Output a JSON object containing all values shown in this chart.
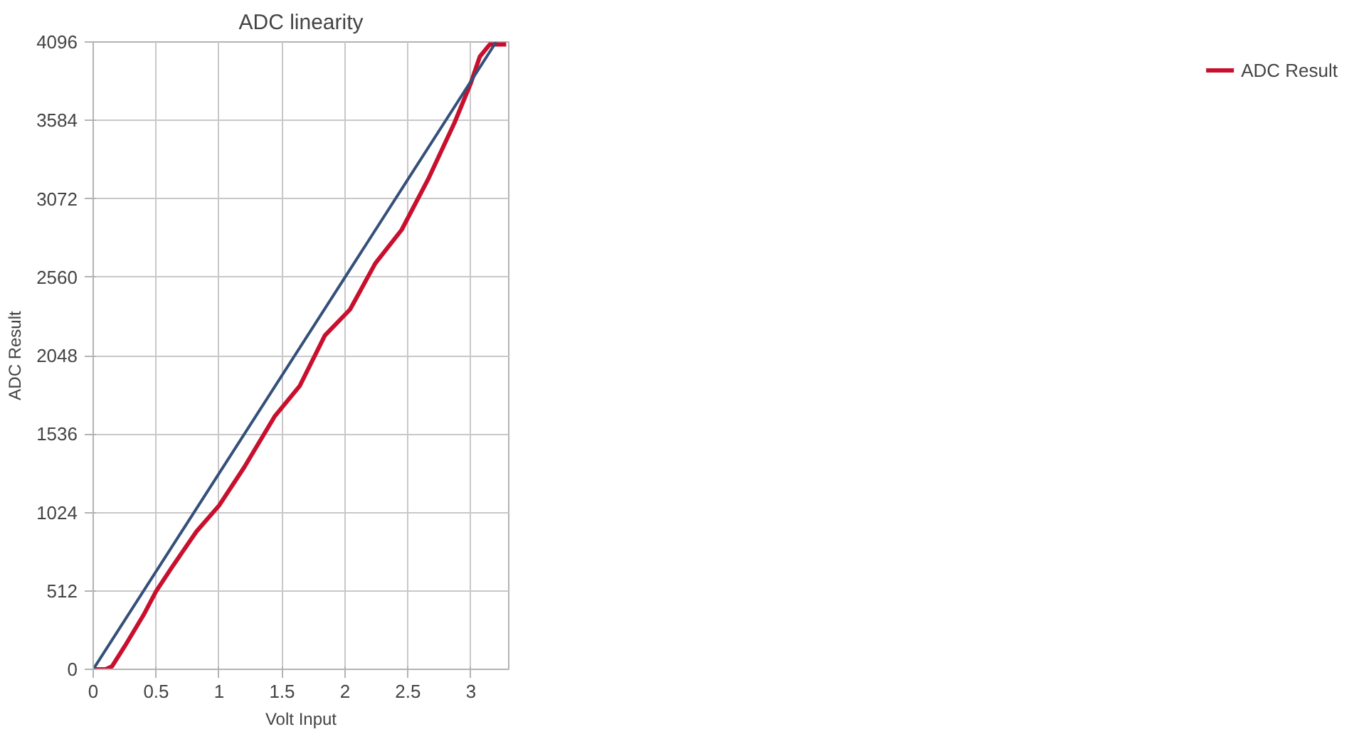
{
  "chart_data": {
    "type": "line",
    "title": "ADC linearity",
    "xlabel": "Volt Input",
    "ylabel": "ADC Result",
    "xlim": [
      0,
      3.3
    ],
    "xticks": [
      0,
      0.5,
      1,
      1.5,
      2,
      2.5,
      3
    ],
    "ylim": [
      0,
      4096
    ],
    "yticks": [
      0,
      512,
      1024,
      1536,
      2048,
      2560,
      3072,
      3584,
      4096
    ],
    "grid": true,
    "legend": "right",
    "line_style": "solid",
    "series": [
      {
        "name": "ADC Result",
        "color": "#c8102e",
        "x": [
          0,
          0.1,
          0.15,
          0.25,
          0.4,
          0.5,
          0.62,
          0.82,
          1.0,
          1.2,
          1.44,
          1.64,
          1.84,
          2.04,
          2.24,
          2.45,
          2.66,
          2.87,
          3.0,
          3.07,
          3.15,
          3.28
        ],
        "values": [
          0,
          0,
          20,
          150,
          355,
          510,
          660,
          900,
          1070,
          1320,
          1650,
          1850,
          2180,
          2350,
          2650,
          2870,
          3200,
          3570,
          3830,
          4000,
          4080,
          4080
        ]
      },
      {
        "color": "#34507a",
        "x": [
          0,
          3.2
        ],
        "values": [
          0,
          4096
        ]
      }
    ]
  }
}
